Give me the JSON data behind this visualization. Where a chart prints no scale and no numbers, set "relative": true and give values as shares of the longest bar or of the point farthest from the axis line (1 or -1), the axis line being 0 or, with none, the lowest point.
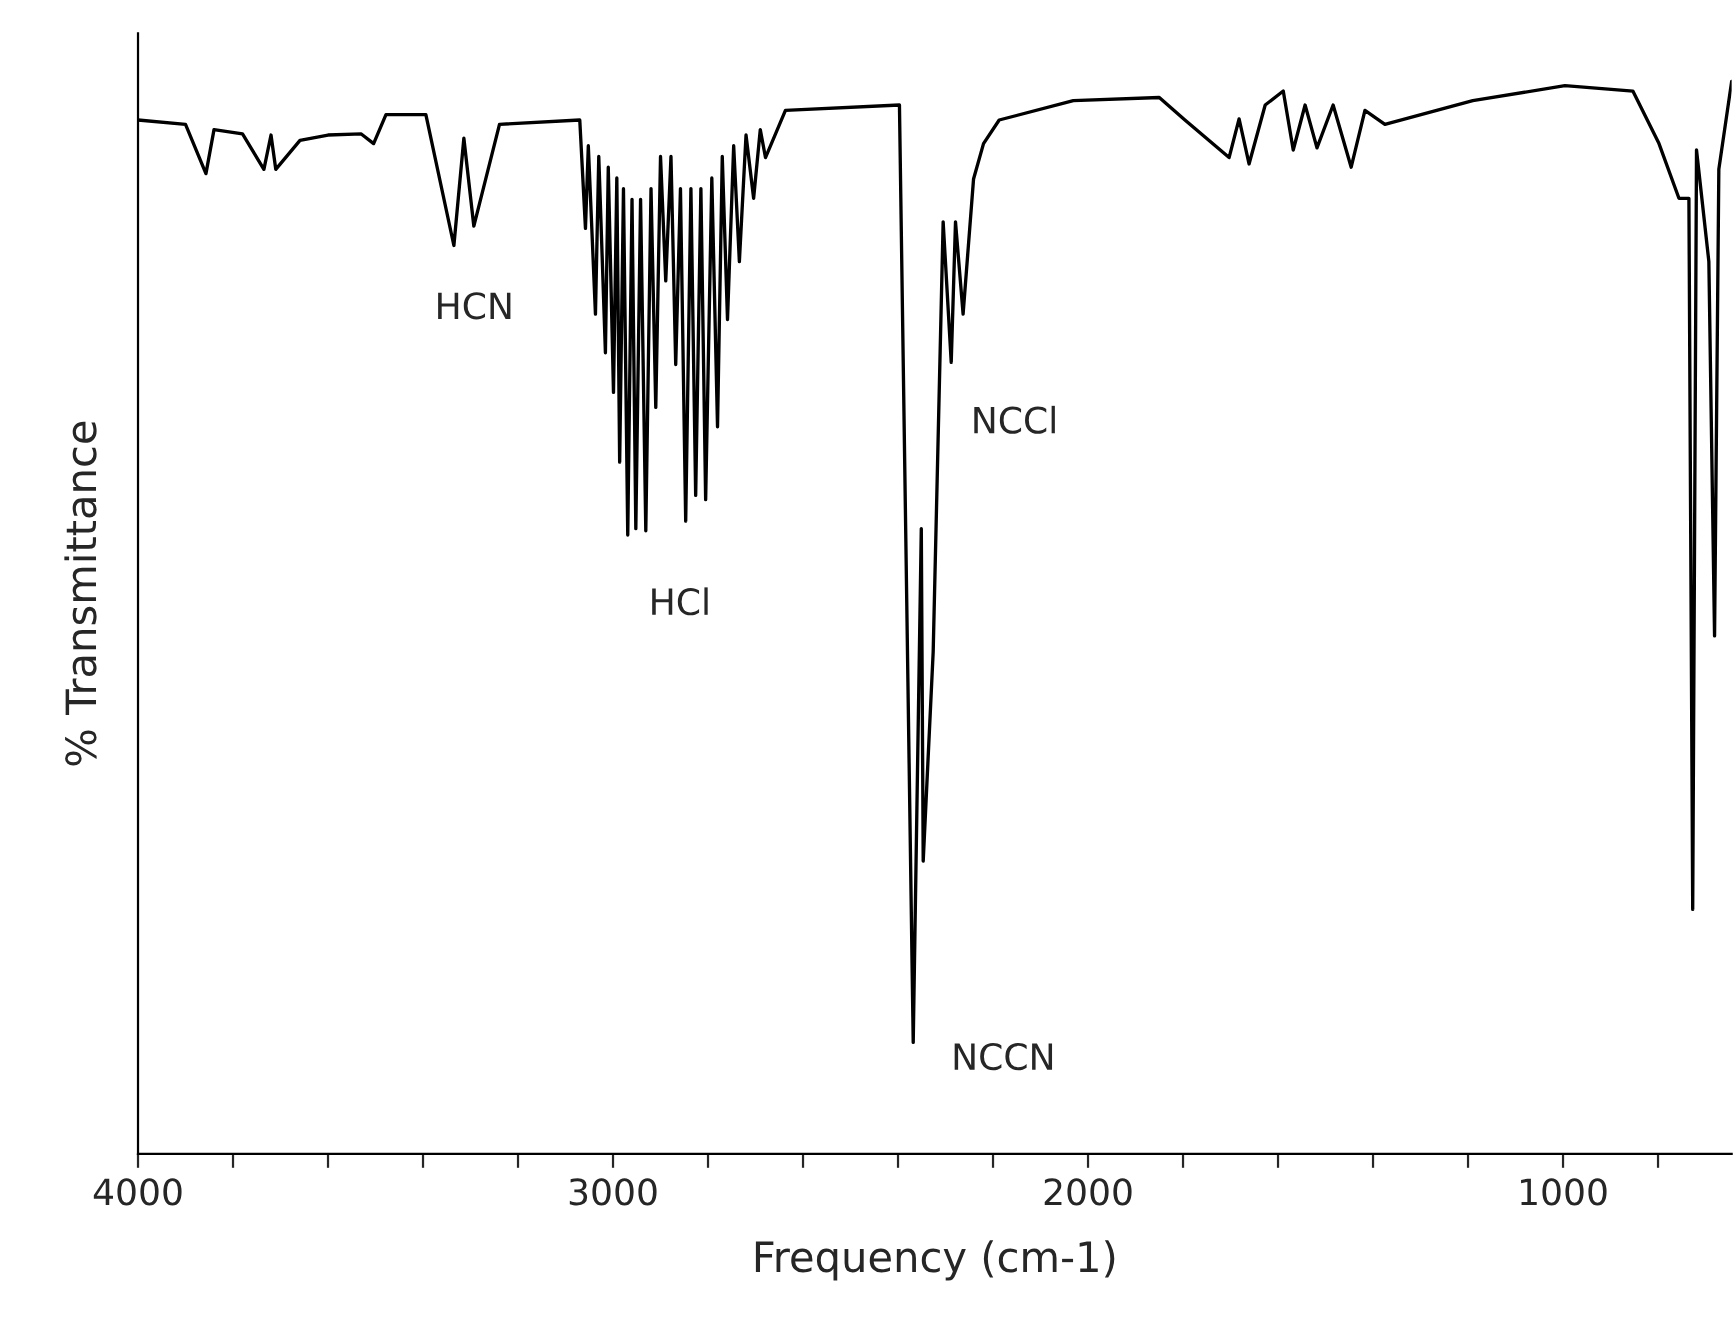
{
  "chart_data": {
    "type": "line",
    "relative": true,
    "xlabel": "Frequency (cm-1)",
    "ylabel": "% Transmittance",
    "xlim": [
      4000,
      645
    ],
    "xticks": [
      4000,
      {
        "value": 3800,
        "label": null
      },
      {
        "value": 3600,
        "label": null
      },
      {
        "value": 3400,
        "label": null
      },
      {
        "value": 3200,
        "label": null
      },
      3000,
      {
        "value": 2800,
        "label": null
      },
      {
        "value": 2600,
        "label": null
      },
      {
        "value": 2400,
        "label": null
      },
      {
        "value": 2200,
        "label": null
      },
      2000,
      {
        "value": 1800,
        "label": null
      },
      {
        "value": 1600,
        "label": null
      },
      {
        "value": 1400,
        "label": null
      },
      {
        "value": 1200,
        "label": null
      },
      1000,
      {
        "value": 800,
        "label": null
      }
    ],
    "grid": false,
    "legend": false,
    "marker": "none",
    "line_style": "solid",
    "series": [
      {
        "color": "#000000",
        "x": [
          4000,
          3900,
          3857,
          3840,
          3780,
          3735,
          3720,
          3710,
          3659,
          3600,
          3530,
          3504,
          3478,
          3394,
          3335,
          3314,
          3293,
          3239,
          3070,
          3058,
          3052,
          3037,
          3030,
          3016,
          3010,
          2999,
          2992,
          2986,
          2978,
          2969,
          2960,
          2952,
          2942,
          2931,
          2920,
          2910,
          2900,
          2889,
          2878,
          2868,
          2858,
          2847,
          2836,
          2826,
          2815,
          2805,
          2792,
          2780,
          2770,
          2759,
          2746,
          2734,
          2720,
          2704,
          2690,
          2679,
          2637,
          2397,
          2368,
          2351,
          2347,
          2326,
          2305,
          2288,
          2279,
          2263,
          2241,
          2220,
          2187,
          2031,
          1850,
          1796,
          1703,
          1682,
          1661,
          1627,
          1589,
          1568,
          1543,
          1518,
          1484,
          1446,
          1417,
          1375,
          1190,
          996,
          853,
          798,
          756,
          735,
          727,
          719,
          693,
          681,
          672,
          645
        ],
        "values": [
          0.964,
          0.96,
          0.914,
          0.955,
          0.951,
          0.918,
          0.95,
          0.918,
          0.945,
          0.95,
          0.951,
          0.942,
          0.969,
          0.969,
          0.847,
          0.947,
          0.865,
          0.96,
          0.964,
          0.863,
          0.94,
          0.783,
          0.93,
          0.747,
          0.92,
          0.71,
          0.91,
          0.645,
          0.9,
          0.577,
          0.89,
          0.583,
          0.89,
          0.581,
          0.9,
          0.696,
          0.93,
          0.814,
          0.93,
          0.736,
          0.9,
          0.59,
          0.9,
          0.614,
          0.9,
          0.61,
          0.91,
          0.678,
          0.93,
          0.778,
          0.94,
          0.832,
          0.95,
          0.891,
          0.955,
          0.929,
          0.973,
          0.978,
          0.104,
          0.583,
          0.273,
          0.468,
          0.869,
          0.738,
          0.869,
          0.783,
          0.909,
          0.942,
          0.964,
          0.982,
          0.985,
          0.964,
          0.929,
          0.965,
          0.923,
          0.978,
          0.991,
          0.936,
          0.978,
          0.938,
          0.978,
          0.92,
          0.973,
          0.96,
          0.982,
          0.996,
          0.991,
          0.942,
          0.891,
          0.891,
          0.228,
          0.936,
          0.832,
          0.483,
          0.918,
          1.0
        ]
      }
    ],
    "annotations": [
      "HCN",
      "HCl",
      "NCCl",
      "NCCN"
    ]
  }
}
